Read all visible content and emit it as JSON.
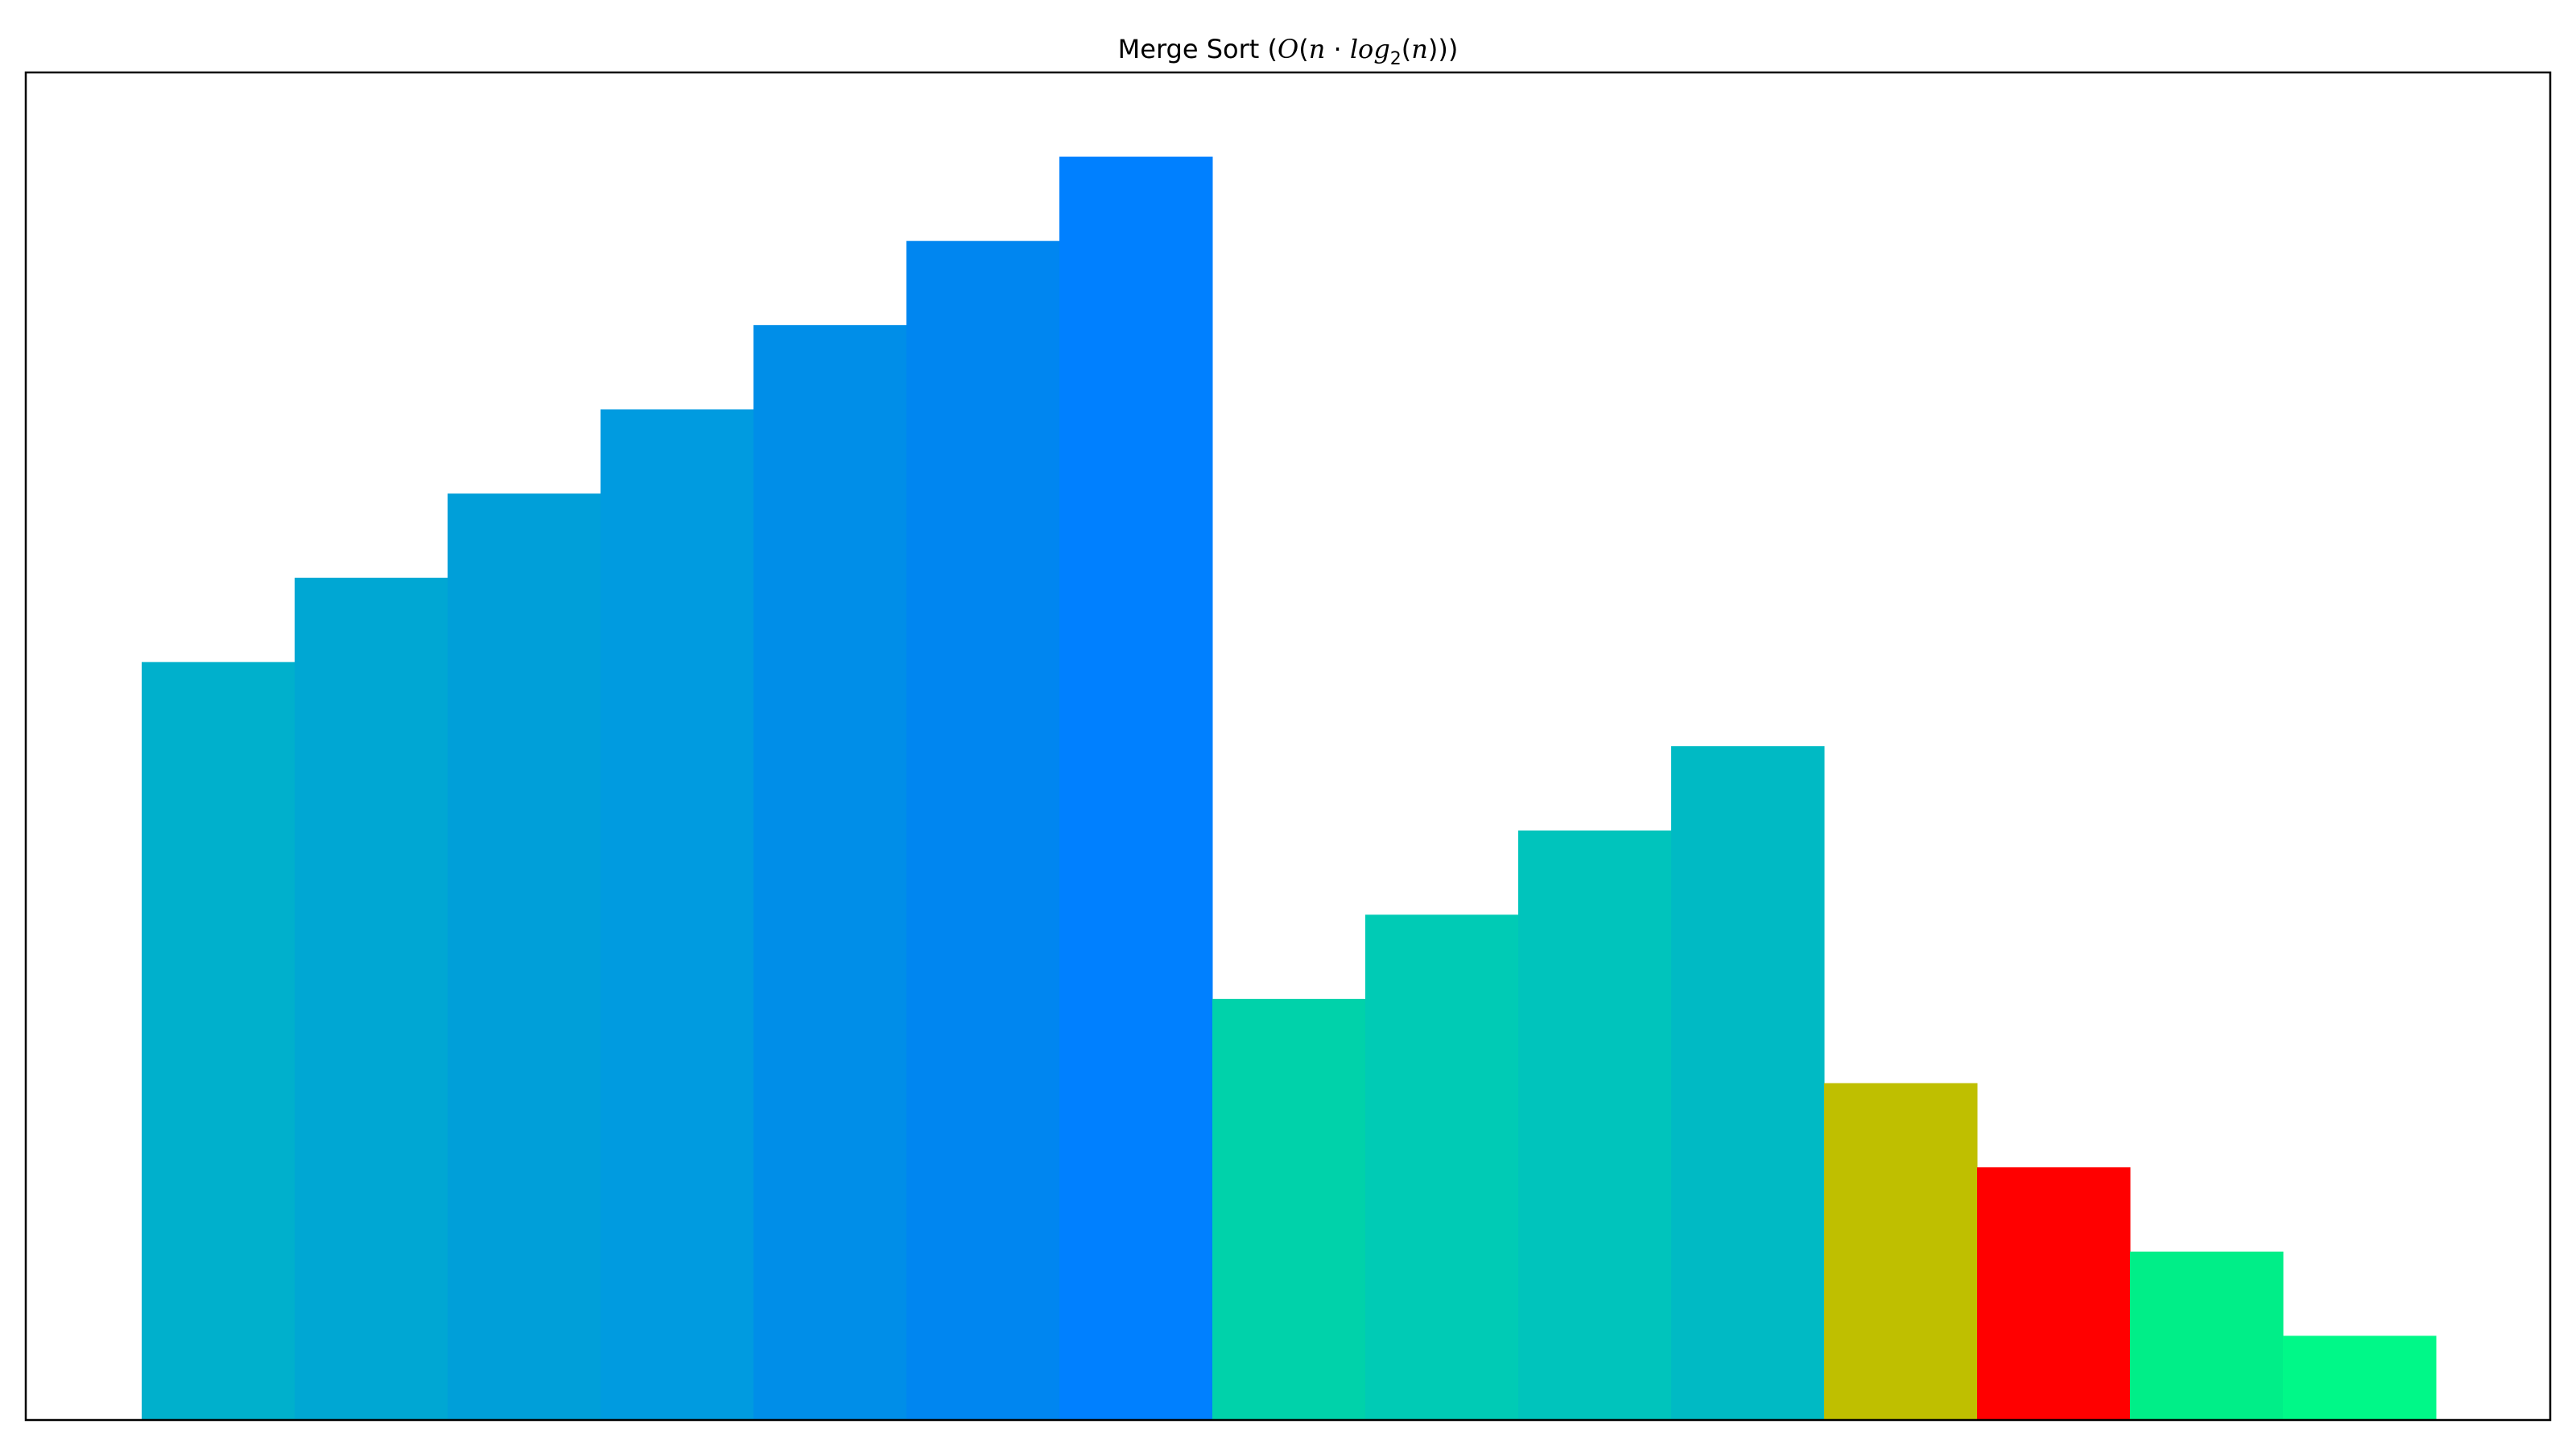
{
  "chart_data": {
    "type": "bar",
    "title": {
      "prefix": "Merge Sort (",
      "big_o": "O",
      "open_paren": "(",
      "n": "n",
      "dot": " · ",
      "log": "log",
      "base": "2",
      "arg_open": "(",
      "arg": "n",
      "close": ")))"
    },
    "xlabel": "",
    "ylabel": "",
    "ylim": [
      0,
      16
    ],
    "grid": false,
    "legend": "none",
    "values": [
      9,
      10,
      11,
      12,
      13,
      14,
      15,
      5,
      6,
      7,
      8,
      4,
      3,
      2,
      1
    ],
    "colors": [
      "#00b0cc",
      "#00a7d3",
      "#009fd9",
      "#009be0",
      "#008ee8",
      "#0086f0",
      "#0080ff",
      "#00d2aa",
      "#00cbb5",
      "#00c4bc",
      "#00bac4",
      "#bfbf00",
      "#ff0000",
      "#00ee88",
      "#00f888"
    ]
  }
}
